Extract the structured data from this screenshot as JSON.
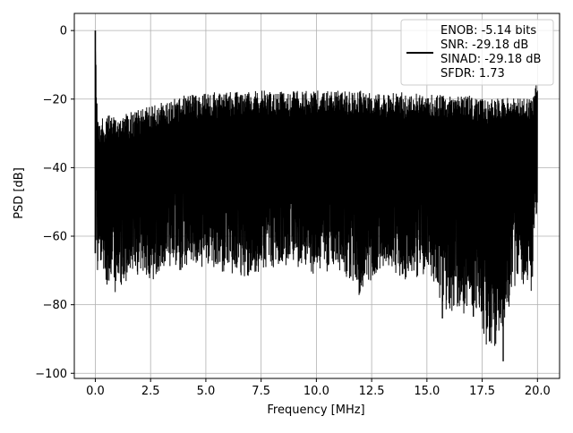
{
  "chart_data": {
    "type": "line",
    "xlabel": "Frequency [MHz]",
    "ylabel": "PSD [dB]",
    "xlim": [
      -0.95,
      21.0
    ],
    "ylim": [
      -101.5,
      5.0
    ],
    "x_ticks": [
      0.0,
      2.5,
      5.0,
      7.5,
      10.0,
      12.5,
      15.0,
      17.5,
      20.0
    ],
    "x_tick_labels": [
      "0.0",
      "2.5",
      "5.0",
      "7.5",
      "10.0",
      "12.5",
      "15.0",
      "17.5",
      "20.0"
    ],
    "y_ticks": [
      0,
      -20,
      -40,
      -60,
      -80,
      -100
    ],
    "y_tick_labels": [
      "0",
      "−20",
      "−40",
      "−60",
      "−80",
      "−100"
    ],
    "grid": true,
    "legend_position": "top-right",
    "legend_lines": [
      "ENOB: -5.14 bits",
      "SNR: -29.18 dB",
      "SINAD: -29.18 dB",
      "SFDR: 1.73"
    ],
    "series": [
      {
        "color": "#000000",
        "description": "dense noise-like PSD; shown here as envelope samples",
        "x": [
          0.0,
          0.05,
          0.1,
          0.2,
          0.5,
          1.0,
          1.5,
          2.0,
          2.5,
          3.0,
          3.5,
          4.0,
          4.5,
          5.0,
          6.0,
          7.0,
          8.0,
          9.0,
          10.0,
          11.0,
          12.0,
          13.0,
          14.0,
          15.0,
          16.0,
          17.0,
          18.0,
          19.0,
          19.8,
          20.0
        ],
        "upper": [
          0,
          -14,
          -24,
          -26,
          -25,
          -24,
          -24,
          -23,
          -22,
          -21,
          -20,
          -19,
          -18.5,
          -18,
          -18,
          -17.5,
          -17.5,
          -17.5,
          -17.5,
          -17.5,
          -17.5,
          -18,
          -18,
          -18.5,
          -19,
          -19,
          -19.5,
          -19.5,
          -19.5,
          -12
        ],
        "lower": [
          -2,
          -65,
          -72,
          -70,
          -75,
          -78,
          -74,
          -72,
          -75,
          -72,
          -70,
          -72,
          -70,
          -70,
          -72,
          -73,
          -70,
          -70,
          -72,
          -70,
          -78,
          -70,
          -73,
          -72,
          -84,
          -83,
          -96,
          -75,
          -77,
          -50
        ]
      }
    ]
  }
}
